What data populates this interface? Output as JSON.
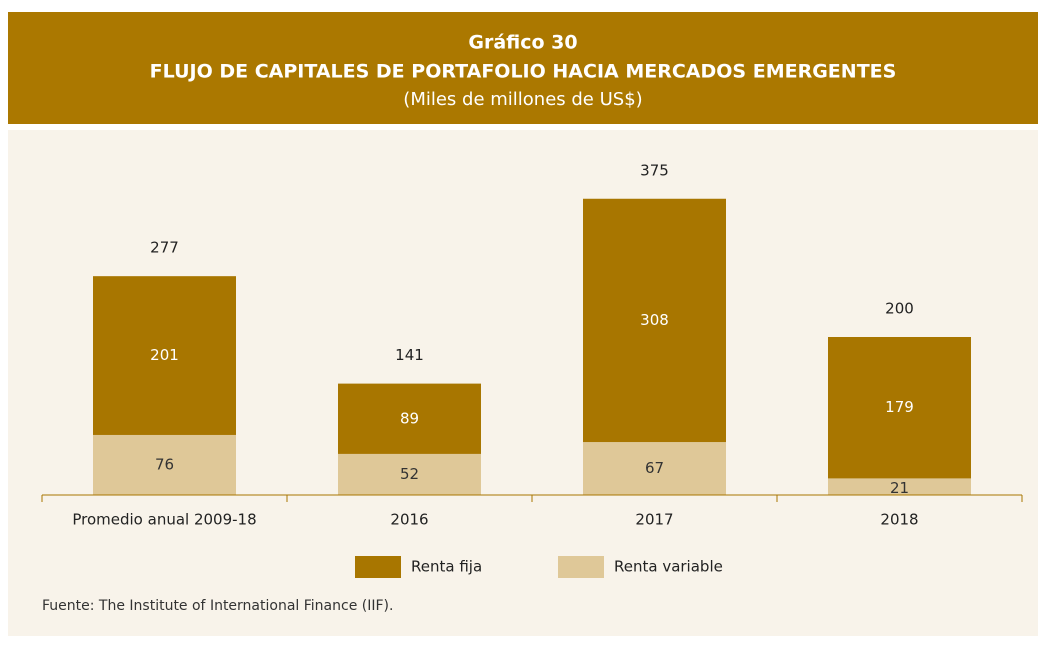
{
  "chart_data": {
    "type": "stacked_bar",
    "title": "Gráfico 30",
    "subtitle": "FLUJO DE CAPITALES DE PORTAFOLIO HACIA MERCADOS EMERGENTES",
    "units": "(Miles de millones de US$)",
    "categories": [
      "Promedio anual 2009-18",
      "2016",
      "2017",
      "2018"
    ],
    "series": [
      {
        "name": "Renta variable",
        "color": "#dfc898",
        "values": [
          76,
          52,
          67,
          21
        ]
      },
      {
        "name": "Renta fija",
        "color": "#a87600",
        "values": [
          201,
          89,
          308,
          179
        ]
      }
    ],
    "totals": [
      277,
      141,
      375,
      200
    ],
    "source": "Fuente: The Institute of International Finance (IIF)."
  }
}
